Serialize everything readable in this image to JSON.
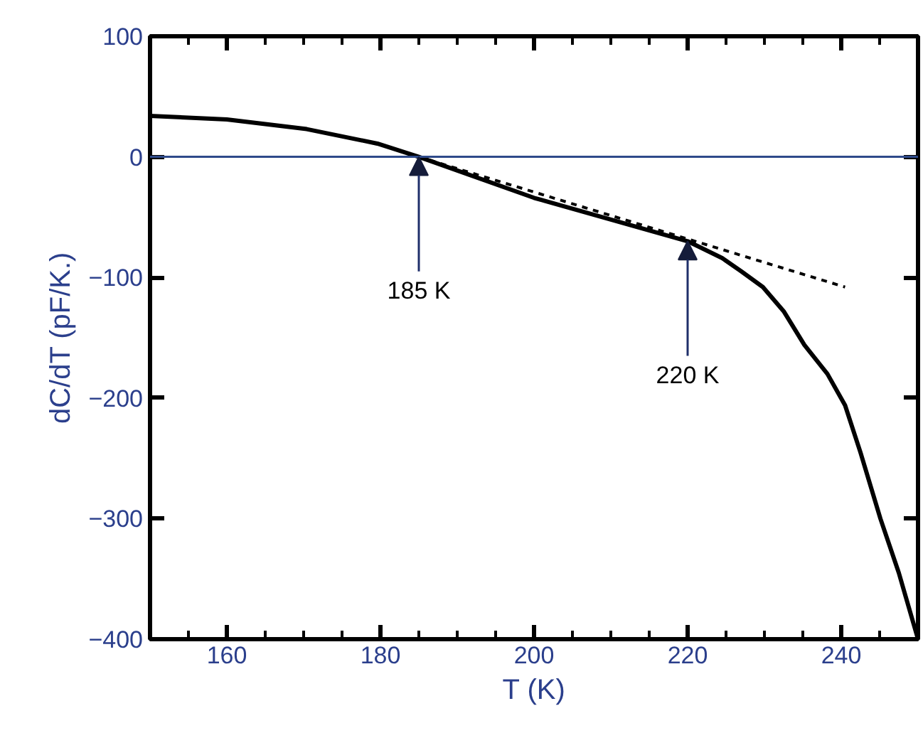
{
  "chart_data": {
    "type": "line",
    "xlabel": "T (K)",
    "ylabel": "dC/dT (pF/K.)",
    "xlim": [
      150,
      250
    ],
    "ylim": [
      -400,
      100
    ],
    "xticks": [
      160,
      180,
      200,
      220,
      240
    ],
    "yticks": [
      -400,
      -300,
      -200,
      -100,
      0,
      100
    ],
    "grid": false,
    "marker": "none",
    "series": [
      {
        "color": "#000000",
        "line_style": "solid",
        "x": [
          150,
          160,
          170.4,
          179.6,
          185,
          200,
          220,
          224.5,
          227,
          229.8,
          232.5,
          235.2,
          238.2,
          240.5,
          242.5,
          245.1,
          247.5,
          250
        ],
        "values": [
          34,
          31,
          23,
          11,
          0,
          -34,
          -70,
          -84,
          -95,
          -108,
          -128,
          -156,
          -180,
          -206,
          -245,
          -300,
          -345,
          -400
        ]
      },
      {
        "color": "#000000",
        "line_style": "dashed",
        "x": [
          185,
          240.5
        ],
        "values": [
          0,
          -108
        ]
      }
    ],
    "ref_lines": [
      {
        "axis": "y",
        "value": 0,
        "color": "#2e4a8a"
      }
    ],
    "annotations": [
      {
        "text": "185 K",
        "x": 185,
        "y": 0
      },
      {
        "text": "220 K",
        "x": 220,
        "y": -70
      }
    ]
  }
}
